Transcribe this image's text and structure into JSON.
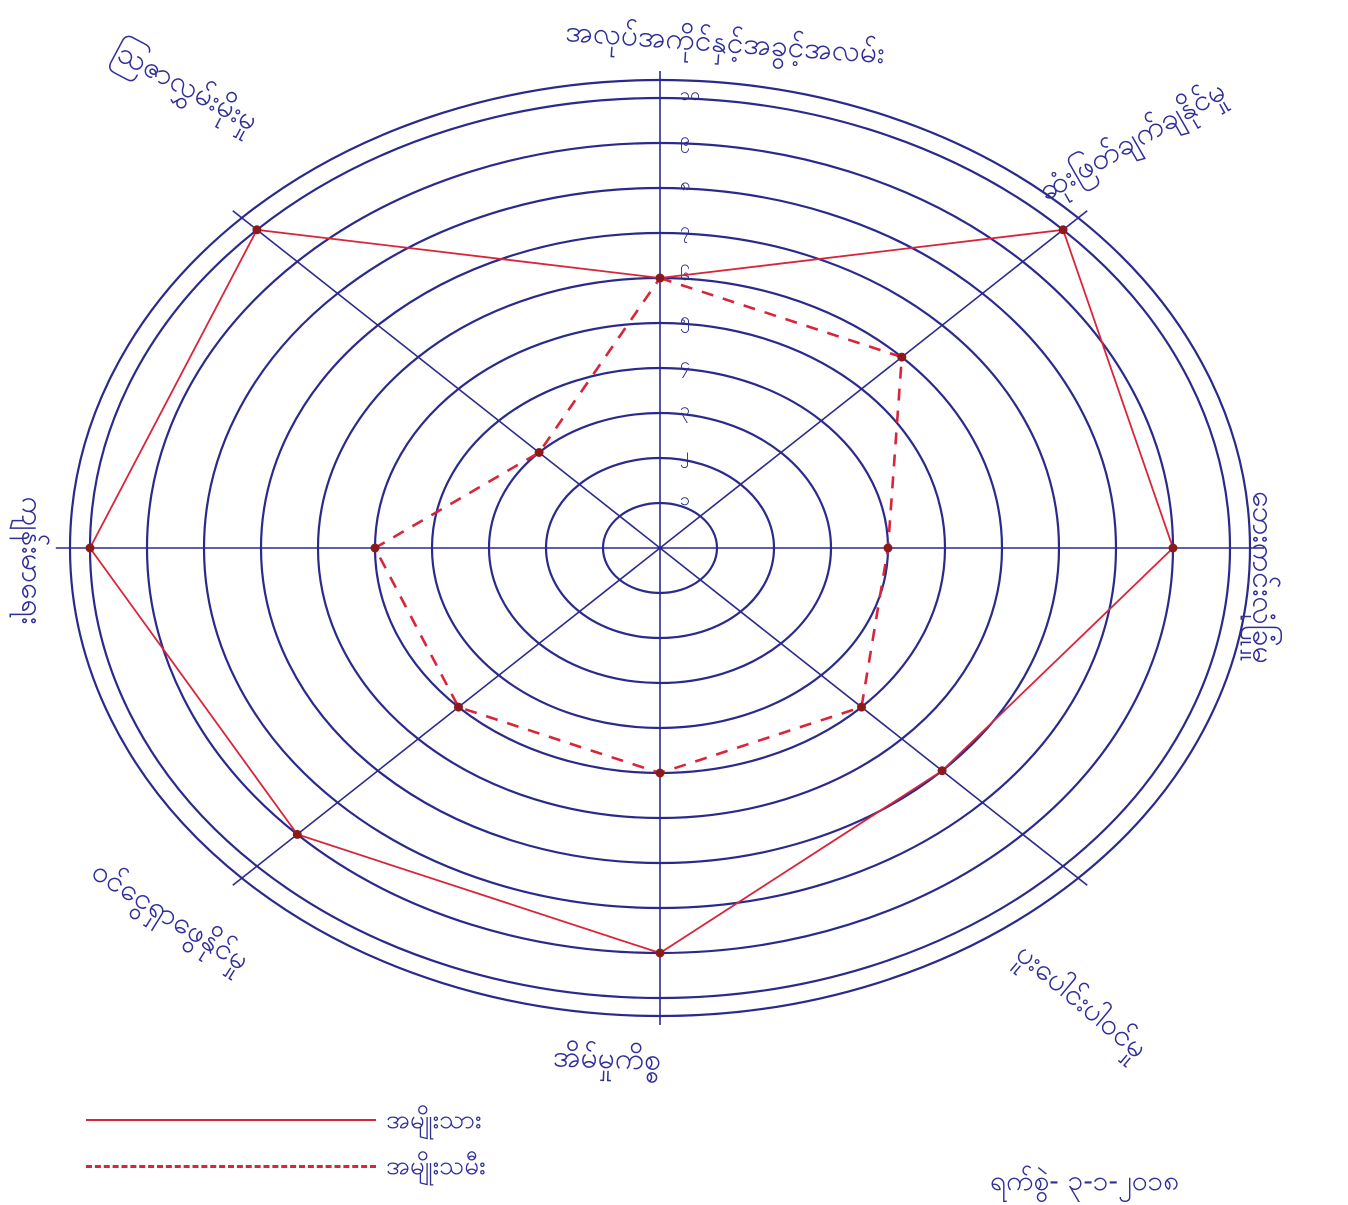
{
  "chart_data": {
    "type": "radar",
    "title": "",
    "scale": {
      "min": 0,
      "max": 10,
      "ticks": [
        1,
        2,
        3,
        4,
        5,
        6,
        7,
        8,
        9,
        10
      ],
      "tick_labels": [
        "၁",
        "၂",
        "၃",
        "၄",
        "၅",
        "၆",
        "၇",
        "၈",
        "၉",
        "၁၀"
      ]
    },
    "axes": [
      "အလုပ်အကိုင်နှင့်အခွင့်အလမ်း",
      "ဆုံးဖြတ်ချက်ချနိုင်မှု",
      "ဘေးကင်းလုံခြုံမှု",
      "ပူးပေါင်းပါဝင်မှု",
      "အိမ်မှုကိစ္စ",
      "ဝင်ငွေရှာဖွေနိုင်မှု",
      "ကျန်းမာရေး",
      "ဩဇာလွှမ်းမိုးမှု"
    ],
    "series": [
      {
        "name": "အမျိုးသား",
        "style": "solid",
        "color": "#d9253a",
        "values": [
          6,
          10,
          9,
          7,
          9,
          9,
          10,
          10
        ]
      },
      {
        "name": "အမျိုးသမီး",
        "style": "dashed",
        "color": "#d9253a",
        "values": [
          6,
          6,
          4,
          5,
          5,
          5,
          5,
          3
        ]
      }
    ],
    "grid": true,
    "legend_position": "bottom-left"
  },
  "colors": {
    "ink": "#2b2a8c",
    "series": "#d9253a",
    "background": "#ffffff"
  },
  "date_text": "ရက်စွဲ- ၃-၁-၂၀၁၈"
}
